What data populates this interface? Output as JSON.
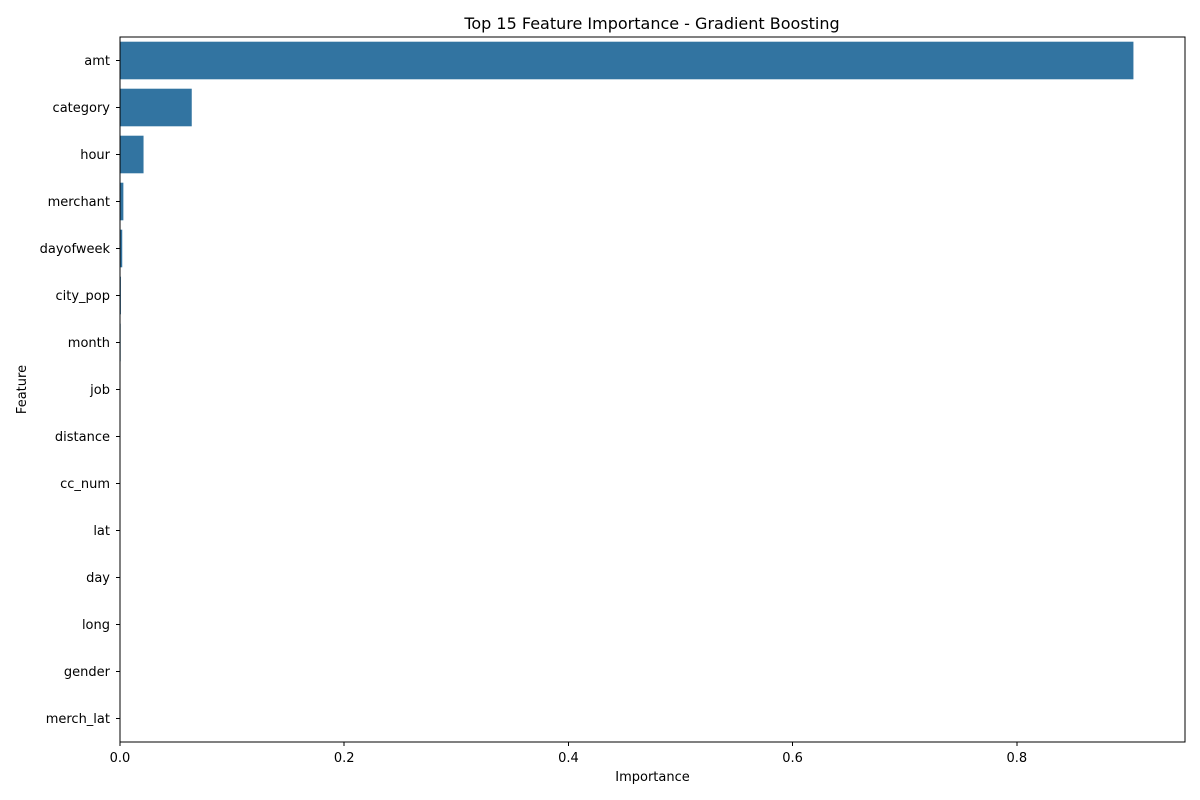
{
  "chart_data": {
    "type": "bar",
    "orientation": "horizontal",
    "title": "Top 15 Feature Importance - Gradient Boosting",
    "xlabel": "Importance",
    "ylabel": "Feature",
    "categories": [
      "amt",
      "category",
      "hour",
      "merchant",
      "dayofweek",
      "city_pop",
      "month",
      "job",
      "distance",
      "cc_num",
      "lat",
      "day",
      "long",
      "gender",
      "merch_lat"
    ],
    "values": [
      0.904,
      0.064,
      0.021,
      0.003,
      0.002,
      0.0008,
      0.0006,
      0.0004,
      0.0003,
      0.0002,
      0.0002,
      0.0001,
      0.0001,
      0.0001,
      0.0001
    ],
    "xlim": [
      0,
      0.95
    ],
    "xticks": [
      0.0,
      0.2,
      0.4,
      0.6,
      0.8
    ],
    "xtick_labels": [
      "0.0",
      "0.2",
      "0.4",
      "0.6",
      "0.8"
    ],
    "bar_color": "#3274a1",
    "grid": false,
    "legend": "none"
  }
}
